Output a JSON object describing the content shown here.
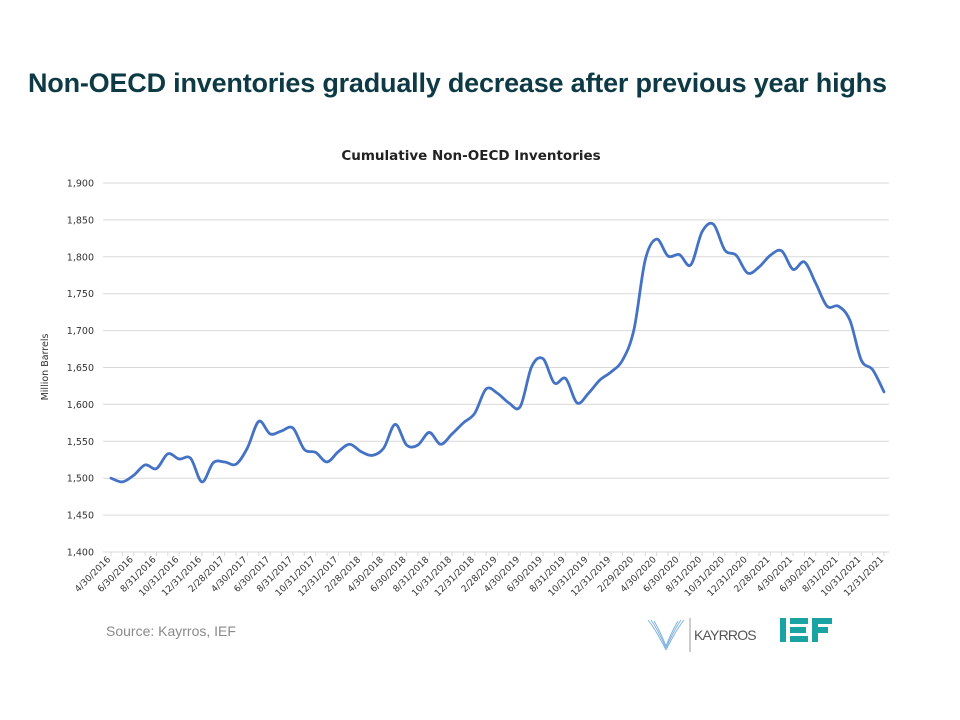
{
  "slide": {
    "title": "Non-OECD inventories gradually decrease after previous year highs",
    "source": "Source: Kayrros, IEF",
    "logos": [
      "KAYRROS",
      "IEF"
    ]
  },
  "colors": {
    "title": "#0d3a45",
    "line": "#4472c4",
    "grid": "#d9d9d9",
    "ief": "#1aa3a3",
    "kayrros": "#7fb3dd"
  },
  "chart_data": {
    "type": "line",
    "title": "Cumulative Non-OECD Inventories",
    "xlabel": "",
    "ylabel": "Million Barrels",
    "ylim": [
      1400,
      1900
    ],
    "yticks": [
      "1,400",
      "1,450",
      "1,500",
      "1,550",
      "1,600",
      "1,650",
      "1,700",
      "1,750",
      "1,800",
      "1,850",
      "1,900"
    ],
    "grid": true,
    "legend": "none",
    "x": [
      "4/30/2016",
      "5/31/2016",
      "6/30/2016",
      "7/31/2016",
      "8/31/2016",
      "9/30/2016",
      "10/31/2016",
      "11/30/2016",
      "12/31/2016",
      "1/31/2017",
      "2/28/2017",
      "3/31/2017",
      "4/30/2017",
      "5/31/2017",
      "6/30/2017",
      "7/31/2017",
      "8/31/2017",
      "9/30/2017",
      "10/31/2017",
      "11/30/2017",
      "12/31/2017",
      "1/31/2018",
      "2/28/2018",
      "3/31/2018",
      "4/30/2018",
      "5/31/2018",
      "6/30/2018",
      "7/31/2018",
      "8/31/2018",
      "9/30/2018",
      "10/31/2018",
      "11/30/2018",
      "12/31/2018",
      "1/31/2019",
      "2/28/2019",
      "3/31/2019",
      "4/30/2019",
      "5/31/2019",
      "6/30/2019",
      "7/31/2019",
      "8/31/2019",
      "9/30/2019",
      "10/31/2019",
      "11/30/2019",
      "12/31/2019",
      "1/31/2020",
      "2/29/2020",
      "3/31/2020",
      "4/30/2020",
      "5/31/2020",
      "6/30/2020",
      "7/31/2020",
      "8/31/2020",
      "9/30/2020",
      "10/31/2020",
      "11/30/2020",
      "12/31/2020",
      "1/31/2021",
      "2/28/2021",
      "3/31/2021",
      "4/30/2021",
      "5/31/2021",
      "6/30/2021",
      "7/31/2021",
      "8/31/2021",
      "9/30/2021",
      "10/31/2021",
      "11/30/2021",
      "12/31/2021"
    ],
    "tick_labels": [
      "4/30/2016",
      "6/30/2016",
      "8/31/2016",
      "10/31/2016",
      "12/31/2016",
      "2/28/2017",
      "4/30/2017",
      "6/30/2017",
      "8/31/2017",
      "10/31/2017",
      "12/31/2017",
      "2/28/2018",
      "4/30/2018",
      "6/30/2018",
      "8/31/2018",
      "10/31/2018",
      "12/31/2018",
      "2/28/2019",
      "4/30/2019",
      "6/30/2019",
      "8/31/2019",
      "10/31/2019",
      "12/31/2019",
      "2/29/2020",
      "4/30/2020",
      "6/30/2020",
      "8/31/2020",
      "10/31/2020",
      "12/31/2020",
      "2/28/2021",
      "4/30/2021",
      "6/30/2021",
      "8/31/2021",
      "10/31/2021",
      "12/31/2021"
    ],
    "series": [
      {
        "values": [
          1500,
          1495,
          1504,
          1518,
          1513,
          1533,
          1526,
          1527,
          1495,
          1521,
          1522,
          1519,
          1541,
          1577,
          1560,
          1564,
          1568,
          1539,
          1535,
          1522,
          1536,
          1546,
          1536,
          1531,
          1541,
          1573,
          1545,
          1545,
          1562,
          1546,
          1560,
          1575,
          1588,
          1621,
          1615,
          1602,
          1597,
          1651,
          1662,
          1629,
          1635,
          1602,
          1615,
          1633,
          1644,
          1660,
          1701,
          1796,
          1824,
          1801,
          1803,
          1789,
          1834,
          1844,
          1809,
          1802,
          1778,
          1786,
          1802,
          1808,
          1783,
          1793,
          1764,
          1733,
          1733,
          1714,
          1660,
          1647,
          1617
        ]
      }
    ]
  }
}
